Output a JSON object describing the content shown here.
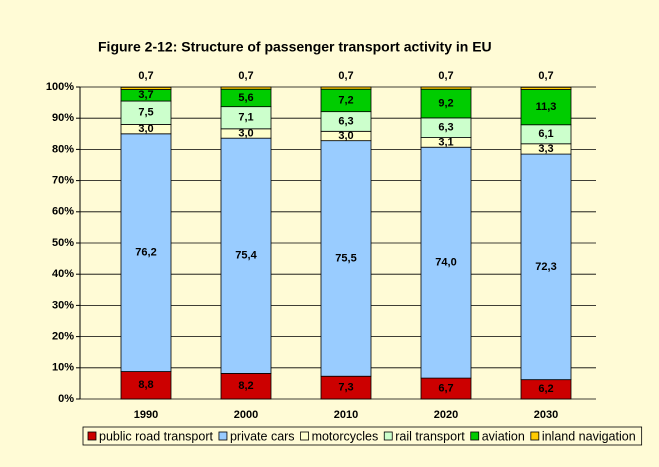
{
  "chart_data": {
    "type": "stacked_bar",
    "title": "Figure 2-12: Structure of passenger transport activity in EU",
    "categories": [
      "1990",
      "2000",
      "2010",
      "2020",
      "2030"
    ],
    "series": [
      {
        "name": "public road transport",
        "color": "#cc0000",
        "values": [
          8.8,
          8.2,
          7.3,
          6.7,
          6.2
        ],
        "value_labels": [
          "8,8",
          "8,2",
          "7,3",
          "6,7",
          "6,2"
        ]
      },
      {
        "name": "private cars",
        "color": "#99ccff",
        "values": [
          76.2,
          75.4,
          75.5,
          74.0,
          72.3
        ],
        "value_labels": [
          "76,2",
          "75,4",
          "75,5",
          "74,0",
          "72,3"
        ]
      },
      {
        "name": "motorcycles",
        "color": "#ffffcc",
        "values": [
          3.0,
          3.0,
          3.0,
          3.1,
          3.3
        ],
        "value_labels": [
          "3,0",
          "3,0",
          "3,0",
          "3,1",
          "3,3"
        ]
      },
      {
        "name": "rail transport",
        "color": "#ccffcc",
        "values": [
          7.5,
          7.1,
          6.3,
          6.3,
          6.1
        ],
        "value_labels": [
          "7,5",
          "7,1",
          "6,3",
          "6,3",
          "6,1"
        ]
      },
      {
        "name": "aviation",
        "color": "#00cc00",
        "values": [
          3.7,
          5.6,
          7.2,
          9.2,
          11.3
        ],
        "value_labels": [
          "3,7",
          "5,6",
          "7,2",
          "9,2",
          "11,3"
        ]
      },
      {
        "name": "inland navigation",
        "color": "#ffcc00",
        "values": [
          0.7,
          0.7,
          0.7,
          0.7,
          0.7
        ],
        "value_labels": [
          "0,7",
          "0,7",
          "0,7",
          "0,7",
          "0,7"
        ]
      }
    ],
    "ylim": [
      0,
      100
    ],
    "yticks": [
      {
        "value": 0,
        "label": "0%"
      },
      {
        "value": 10,
        "label": "10%"
      },
      {
        "value": 20,
        "label": "20%"
      },
      {
        "value": 30,
        "label": "30%"
      },
      {
        "value": 40,
        "label": "40%"
      },
      {
        "value": 50,
        "label": "50%"
      },
      {
        "value": 60,
        "label": "60%"
      },
      {
        "value": 70,
        "label": "70%"
      },
      {
        "value": 80,
        "label": "80%"
      },
      {
        "value": 90,
        "label": "90%"
      },
      {
        "value": 100,
        "label": "100%"
      }
    ],
    "grid": true,
    "legend": "bottom"
  }
}
